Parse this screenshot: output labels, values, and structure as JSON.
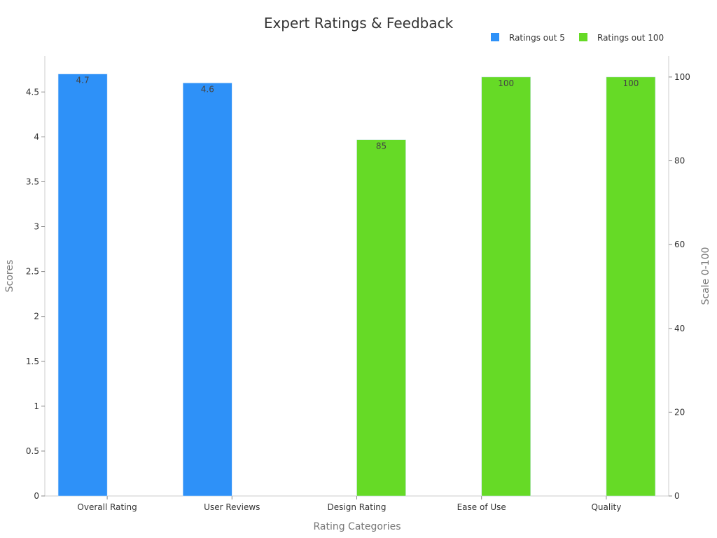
{
  "chart_data": {
    "type": "bar",
    "title": "Expert Ratings & Feedback",
    "xlabel": "Rating Categories",
    "ylabel": "Scores",
    "y2label": "Scale 0-100",
    "categories": [
      "Overall Rating",
      "User Reviews",
      "Design Rating",
      "Ease of Use",
      "Quality"
    ],
    "ylim": [
      0,
      4.9
    ],
    "y2lim": [
      0,
      105
    ],
    "yticks": [
      "0",
      "0.5",
      "1",
      "1.5",
      "2",
      "2.5",
      "3",
      "3.5",
      "4",
      "4.5"
    ],
    "y2ticks": [
      "0",
      "20",
      "40",
      "60",
      "80",
      "100"
    ],
    "series": [
      {
        "name": "Ratings out 5",
        "axis": "left",
        "color": "#2e91f8",
        "values": [
          4.7,
          4.6,
          null,
          null,
          null
        ],
        "labels": [
          "4.7",
          "4.6",
          "",
          "",
          ""
        ]
      },
      {
        "name": "Ratings out 100",
        "axis": "right",
        "color": "#66da26",
        "values": [
          null,
          null,
          85,
          100,
          100
        ],
        "labels": [
          "",
          "",
          "85",
          "100",
          "100"
        ]
      }
    ],
    "legend_position": "top-right",
    "grid": false
  }
}
